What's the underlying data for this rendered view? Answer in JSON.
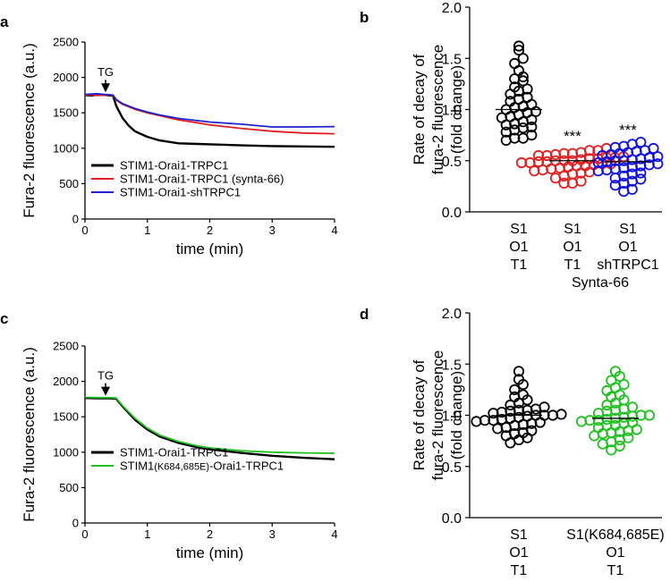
{
  "chart_data": [
    {
      "panel": "a",
      "type": "line",
      "xlabel": "time (min)",
      "ylabel": "Fura-2 fluorescence  (a.u.)",
      "xlim": [
        0,
        4
      ],
      "ylim": [
        0,
        2500
      ],
      "xticks": [
        "0",
        "1",
        "2",
        "3",
        "4"
      ],
      "yticks": [
        "0",
        "500",
        "1000",
        "1500",
        "2000",
        "2500"
      ],
      "annotation": {
        "label": "TG",
        "x": 0.33
      },
      "legend_position": "bottom-left",
      "series": [
        {
          "name": "STIM1-Orai1-TRPC1",
          "color": "#000000",
          "x": [
            0,
            0.1,
            0.2,
            0.3,
            0.4,
            0.45,
            0.5,
            0.6,
            0.7,
            0.8,
            1.0,
            1.2,
            1.5,
            1.8,
            2.0,
            2.5,
            3.0,
            3.5,
            4.0
          ],
          "y": [
            1750,
            1745,
            1752,
            1755,
            1745,
            1740,
            1600,
            1430,
            1320,
            1240,
            1160,
            1110,
            1070,
            1060,
            1055,
            1040,
            1030,
            1025,
            1020
          ]
        },
        {
          "name": "STIM1-Orai1-TRPC1 (synta-66)",
          "color": "#e02020",
          "x": [
            0,
            0.1,
            0.2,
            0.3,
            0.4,
            0.45,
            0.5,
            0.6,
            0.8,
            1.0,
            1.2,
            1.5,
            1.8,
            2.0,
            2.5,
            3.0,
            3.5,
            4.0
          ],
          "y": [
            1750,
            1755,
            1745,
            1752,
            1750,
            1745,
            1680,
            1620,
            1550,
            1500,
            1460,
            1400,
            1360,
            1330,
            1280,
            1240,
            1215,
            1205
          ]
        },
        {
          "name": "STIM1-Orai1-shTRPC1",
          "color": "#2020d0",
          "x": [
            0,
            0.1,
            0.2,
            0.3,
            0.4,
            0.45,
            0.5,
            0.6,
            0.8,
            1.0,
            1.2,
            1.5,
            1.8,
            2.0,
            2.5,
            3.0,
            3.5,
            4.0
          ],
          "y": [
            1760,
            1765,
            1770,
            1760,
            1755,
            1750,
            1690,
            1630,
            1560,
            1510,
            1470,
            1420,
            1390,
            1370,
            1340,
            1300,
            1300,
            1305
          ]
        }
      ]
    },
    {
      "panel": "b",
      "type": "scatter",
      "ylabel_lines": [
        "Rate of decay of",
        "fura-2 fluorescence",
        "(fold change)"
      ],
      "ylim": [
        0,
        2
      ],
      "yticks": [
        "0.0",
        "0.5",
        "1.0",
        "1.5",
        "2.0"
      ],
      "bracket_label": "Synta-66",
      "groups": [
        {
          "label_lines": [
            "S1",
            "O1",
            "T1"
          ],
          "color": "#000000",
          "mean": 1.0,
          "significance": "",
          "values": [
            1.62,
            1.58,
            1.5,
            1.45,
            1.38,
            1.32,
            1.3,
            1.28,
            1.22,
            1.2,
            1.18,
            1.15,
            1.12,
            1.1,
            1.08,
            1.05,
            1.03,
            1.02,
            1.0,
            0.98,
            0.97,
            0.95,
            0.93,
            0.92,
            0.9,
            0.88,
            0.86,
            0.85,
            0.83,
            0.82,
            0.8,
            0.78,
            0.75,
            0.72,
            0.72,
            0.7
          ]
        },
        {
          "label_lines": [
            "S1",
            "O1",
            "T1"
          ],
          "color": "#e02020",
          "mean": 0.5,
          "significance": "***",
          "values": [
            0.62,
            0.6,
            0.6,
            0.58,
            0.57,
            0.57,
            0.56,
            0.55,
            0.55,
            0.54,
            0.53,
            0.53,
            0.52,
            0.52,
            0.51,
            0.5,
            0.5,
            0.5,
            0.49,
            0.49,
            0.48,
            0.48,
            0.47,
            0.47,
            0.46,
            0.45,
            0.45,
            0.44,
            0.43,
            0.42,
            0.41,
            0.4,
            0.39,
            0.38,
            0.37,
            0.35,
            0.33,
            0.3,
            0.28,
            0.28
          ]
        },
        {
          "label_lines": [
            "S1",
            "O1",
            "shTRPC1"
          ],
          "color": "#1010e0",
          "mean": 0.49,
          "significance": "***",
          "values": [
            0.68,
            0.66,
            0.64,
            0.63,
            0.62,
            0.6,
            0.59,
            0.58,
            0.57,
            0.56,
            0.55,
            0.54,
            0.53,
            0.52,
            0.51,
            0.5,
            0.5,
            0.49,
            0.48,
            0.47,
            0.46,
            0.45,
            0.44,
            0.43,
            0.42,
            0.41,
            0.4,
            0.38,
            0.37,
            0.35,
            0.33,
            0.32,
            0.3,
            0.28,
            0.26,
            0.22,
            0.2
          ]
        }
      ]
    },
    {
      "panel": "c",
      "type": "line",
      "xlabel": "time (min)",
      "ylabel": "Fura-2 fluorescence  (a.u.)",
      "xlim": [
        0,
        4
      ],
      "ylim": [
        0,
        2500
      ],
      "xticks": [
        "0",
        "1",
        "2",
        "3",
        "4"
      ],
      "yticks": [
        "0",
        "500",
        "1000",
        "1500",
        "2000",
        "2500"
      ],
      "annotation": {
        "label": "TG",
        "x": 0.33
      },
      "legend_position": "bottom-left",
      "series": [
        {
          "name": "STIM1-Orai1-TRPC1",
          "color": "#000000",
          "x": [
            0,
            0.2,
            0.4,
            0.5,
            0.6,
            0.8,
            1.0,
            1.2,
            1.5,
            1.8,
            2.0,
            2.5,
            3.0,
            3.5,
            4.0
          ],
          "y": [
            1765,
            1760,
            1760,
            1755,
            1650,
            1460,
            1320,
            1220,
            1130,
            1070,
            1040,
            990,
            950,
            920,
            900
          ]
        },
        {
          "name": "STIM1(K684,685E)-Orai1-TRPC1",
          "name_parts": [
            "STIM1",
            "(K684,685E)",
            "-Orai1-TRPC1"
          ],
          "color": "#20c020",
          "x": [
            0,
            0.2,
            0.4,
            0.5,
            0.6,
            0.8,
            1.0,
            1.2,
            1.5,
            1.8,
            2.0,
            2.5,
            3.0,
            3.5,
            4.0
          ],
          "y": [
            1775,
            1770,
            1770,
            1765,
            1660,
            1480,
            1340,
            1240,
            1150,
            1090,
            1060,
            1020,
            1000,
            990,
            985
          ]
        }
      ]
    },
    {
      "panel": "d",
      "type": "scatter",
      "ylabel_lines": [
        "Rate of decay of",
        "fura-2 fluorescence",
        "(fold change)"
      ],
      "ylim": [
        0,
        2
      ],
      "yticks": [
        "0.0",
        "0.5",
        "1.0",
        "1.5",
        "2.0"
      ],
      "groups": [
        {
          "label_lines": [
            "S1",
            "O1",
            "T1"
          ],
          "color": "#000000",
          "mean": 1.0,
          "significance": "",
          "values": [
            1.43,
            1.35,
            1.3,
            1.25,
            1.2,
            1.18,
            1.15,
            1.12,
            1.1,
            1.08,
            1.06,
            1.05,
            1.04,
            1.03,
            1.02,
            1.01,
            1.0,
            1.0,
            0.99,
            0.98,
            0.97,
            0.96,
            0.95,
            0.94,
            0.93,
            0.92,
            0.91,
            0.9,
            0.88,
            0.87,
            0.85,
            0.83,
            0.82,
            0.8,
            0.78,
            0.76,
            0.73,
            1.05,
            1.0,
            0.95
          ]
        },
        {
          "label_lines": [
            "S1(K684,685E)",
            "O1",
            "T1"
          ],
          "color": "#20c020",
          "mean": 0.97,
          "significance": "",
          "values": [
            1.43,
            1.38,
            1.34,
            1.3,
            1.27,
            1.24,
            1.2,
            1.18,
            1.15,
            1.12,
            1.1,
            1.08,
            1.06,
            1.04,
            1.02,
            1.0,
            0.99,
            0.98,
            0.97,
            0.96,
            0.95,
            0.94,
            0.93,
            0.92,
            0.9,
            0.88,
            0.86,
            0.85,
            0.83,
            0.82,
            0.8,
            0.78,
            0.76,
            0.74,
            0.72,
            0.7,
            0.66,
            1.05,
            1.0,
            0.95,
            0.9,
            0.84
          ]
        }
      ]
    }
  ]
}
